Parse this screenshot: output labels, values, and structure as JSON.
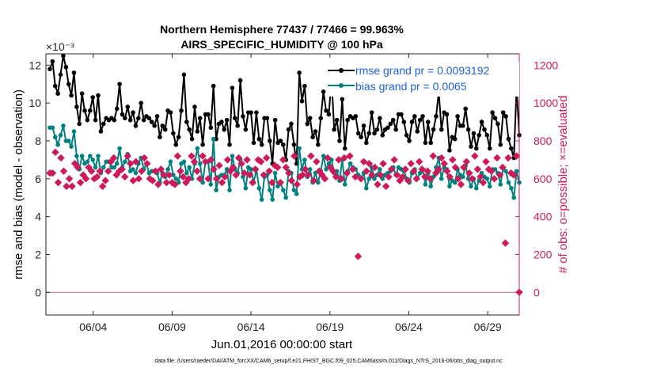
{
  "chart_data": {
    "type": "line",
    "title": "Northern Hemisphere 77437 / 77466 = 99.963%",
    "subtitle": "AIRS_SPECIFIC_HUMIDITY @ 100 hPa",
    "xlabel": "Jun.01,2016 00:00:00 start",
    "ylabel_left": "rmse and bias (model - observation)",
    "ylabel_right": "# of obs: o=possible; ×=evaluated",
    "y_exponent": "×10⁻³",
    "xlim": [
      1,
      31
    ],
    "ylim_left": [
      -1.2,
      12.6
    ],
    "ylim_right": [
      -120,
      1260
    ],
    "x_ticks": [
      4,
      9,
      14,
      19,
      24,
      29
    ],
    "x_tick_labels": [
      "06/04",
      "06/09",
      "06/14",
      "06/19",
      "06/24",
      "06/29"
    ],
    "y_ticks_left": [
      0,
      2,
      4,
      6,
      8,
      10,
      12
    ],
    "y_tick_labels_left": [
      "0",
      "2",
      "4",
      "6",
      "8",
      "10",
      "12"
    ],
    "y_ticks_right": [
      0,
      200,
      400,
      600,
      800,
      1000,
      1200
    ],
    "y_tick_labels_right": [
      "0",
      "200",
      "400",
      "600",
      "800",
      "1000",
      "1200"
    ],
    "legend": [
      {
        "label": "rmse grand pr = 0.0093192",
        "color": "#000000"
      },
      {
        "label": "bias grand pr = 0.0065",
        "color": "#008080"
      }
    ],
    "series": [
      {
        "name": "rmse",
        "color": "#000000",
        "values": [
          11.8,
          12.2,
          10.9,
          10.5,
          11.5,
          12.5,
          11.9,
          11.0,
          10.4,
          11.6,
          9.8,
          8.9,
          10.5,
          9.6,
          9.1,
          9.6,
          10.3,
          9.1,
          10.4,
          8.5,
          8.9,
          9.2,
          9.1,
          9.2,
          9.1,
          9.7,
          11.0,
          9.4,
          9.2,
          9.8,
          9.1,
          9.5,
          8.8,
          9.2,
          10.0,
          9.1,
          9.3,
          9.2,
          9.0,
          8.8,
          9.3,
          8.2,
          8.8,
          8.6,
          9.6,
          9.5,
          8.4,
          7.8,
          8.2,
          9.6,
          11.5,
          9.0,
          8.6,
          8.1,
          9.8,
          8.5,
          9.2,
          7.8,
          9.4,
          9.4,
          8.7,
          10.9,
          8.1,
          8.9,
          9.0,
          8.6,
          9.1,
          7.8,
          10.8,
          9.2,
          8.8,
          11.2,
          9.3,
          8.6,
          9.5,
          9.5,
          7.9,
          9.5,
          8.1,
          7.8,
          9.2,
          9.2,
          8.0,
          6.8,
          9.1,
          7.9,
          8.0,
          7.8,
          7.0,
          8.6,
          8.9,
          7.8,
          6.8,
          11.6,
          10.1,
          10.9,
          8.9,
          9.2,
          8.2,
          8.5,
          7.8,
          9.2,
          10.6,
          9.6,
          9.4,
          11.3,
          8.6,
          9.1,
          8.0,
          10.2,
          7.6,
          9.1,
          9.3,
          9.2,
          9.3,
          8.4,
          8.2,
          8.8,
          7.9,
          8.4,
          9.5,
          8.4,
          8.6,
          9.2,
          8.3,
          8.6,
          8.7,
          8.9,
          9.1,
          8.6,
          9.4,
          9.4,
          9.0,
          8.3,
          8.0,
          9.0,
          9.3,
          8.5,
          9.1,
          9.3,
          7.9,
          9.0,
          7.9,
          8.6,
          9.3,
          10.6,
          8.6,
          9.5,
          9.4,
          7.5,
          8.2,
          8.1,
          9.3,
          8.8,
          8.8,
          9.7,
          8.6,
          7.7,
          8.4,
          7.6,
          8.3,
          9.0,
          8.6,
          8.3,
          7.6,
          9.5,
          9.2,
          8.9,
          7.8,
          9.5,
          9.3,
          8.1,
          7.6,
          7.1,
          10.8,
          8.3
        ]
      },
      {
        "name": "bias",
        "color": "#008080",
        "values": [
          8.7,
          8.7,
          8.2,
          7.8,
          8.3,
          8.8,
          8.0,
          8.0,
          7.7,
          8.5,
          7.2,
          6.5,
          7.2,
          6.8,
          6.9,
          7.2,
          7.0,
          6.6,
          7.2,
          6.3,
          6.6,
          6.9,
          6.9,
          6.6,
          6.6,
          6.8,
          7.6,
          6.6,
          6.9,
          7.3,
          6.4,
          6.5,
          6.3,
          6.8,
          7.1,
          6.5,
          6.8,
          6.3,
          6.4,
          6.4,
          6.3,
          5.8,
          6.3,
          6.1,
          6.5,
          6.9,
          6.2,
          6.0,
          5.8,
          6.8,
          6.9,
          6.3,
          6.6,
          6.0,
          6.8,
          7.6,
          6.8,
          5.8,
          6.9,
          6.9,
          5.7,
          8.1,
          5.4,
          6.1,
          6.2,
          6.2,
          6.5,
          5.4,
          7.2,
          6.5,
          6.3,
          7.0,
          6.1,
          5.5,
          6.6,
          6.5,
          5.8,
          6.5,
          5.5,
          4.9,
          6.1,
          6.2,
          5.4,
          4.9,
          6.3,
          5.6,
          5.8,
          5.4,
          5.0,
          6.4,
          6.3,
          5.4,
          5.2,
          7.6,
          6.5,
          7.0,
          6.1,
          6.5,
          5.8,
          6.3,
          5.8,
          6.4,
          7.2,
          6.5,
          6.8,
          7.0,
          6.3,
          6.4,
          5.9,
          7.0,
          5.7,
          6.4,
          6.8,
          6.6,
          6.5,
          6.2,
          6.0,
          6.3,
          5.5,
          6.0,
          6.6,
          6.0,
          6.2,
          6.5,
          6.0,
          6.2,
          6.3,
          6.4,
          6.6,
          6.2,
          6.6,
          6.5,
          6.4,
          6.0,
          5.8,
          6.3,
          6.5,
          6.0,
          6.3,
          6.5,
          5.7,
          6.3,
          5.6,
          6.1,
          6.6,
          7.1,
          6.0,
          6.6,
          6.5,
          5.6,
          5.9,
          5.8,
          6.5,
          6.2,
          6.1,
          6.7,
          6.0,
          5.6,
          6.0,
          5.5,
          5.9,
          6.3,
          6.1,
          6.0,
          5.6,
          6.5,
          6.5,
          6.3,
          5.7,
          6.6,
          6.4,
          5.8,
          5.5,
          5.0,
          6.4,
          5.8
        ]
      },
      {
        "name": "# evaluated obs",
        "color": "#cc1a5a",
        "axis": "right",
        "values": [
          630,
          630,
          740,
          580,
          710,
          640,
          560,
          600,
          560,
          680,
          660,
          580,
          620,
          600,
          660,
          640,
          600,
          610,
          640,
          560,
          590,
          640,
          690,
          710,
          620,
          640,
          650,
          610,
          720,
          680,
          590,
          690,
          600,
          640,
          710,
          680,
          600,
          590,
          640,
          570,
          650,
          620,
          580,
          620,
          580,
          570,
          720,
          640,
          610,
          580,
          600,
          720,
          690,
          640,
          600,
          720,
          690,
          600,
          700,
          650,
          600,
          670,
          580,
          610,
          700,
          640,
          660,
          620,
          710,
          680,
          630,
          700,
          620,
          580,
          650,
          700,
          690,
          620,
          710,
          640,
          580,
          670,
          660,
          580,
          700,
          660,
          630,
          590,
          720,
          570,
          610,
          620,
          650,
          620,
          720,
          590,
          690,
          640,
          620,
          600,
          710,
          660,
          640,
          610,
          700,
          600,
          710,
          630,
          720,
          650,
          610,
          190,
          600,
          690,
          640,
          680,
          620,
          660,
          570,
          620,
          680,
          560,
          610,
          650,
          700,
          620,
          590,
          610,
          650,
          590,
          680,
          640,
          600,
          690,
          650,
          610,
          640,
          600,
          720,
          630,
          650,
          710,
          680,
          640,
          610,
          700,
          660,
          600,
          570,
          660,
          690,
          630,
          600,
          720,
          650,
          610,
          580,
          690,
          650,
          640,
          600,
          710,
          620,
          660,
          260,
          710,
          630,
          620,
          720,
          0
        ]
      }
    ]
  },
  "footer": "data file: /Users/raeder/DAI/ATM_forcXX/CAM6_setup/f.e21.FHIST_BGC.f09_025.CAM6assim.011/Diags_NTrS_2016-06/obs_diag_output.nc"
}
